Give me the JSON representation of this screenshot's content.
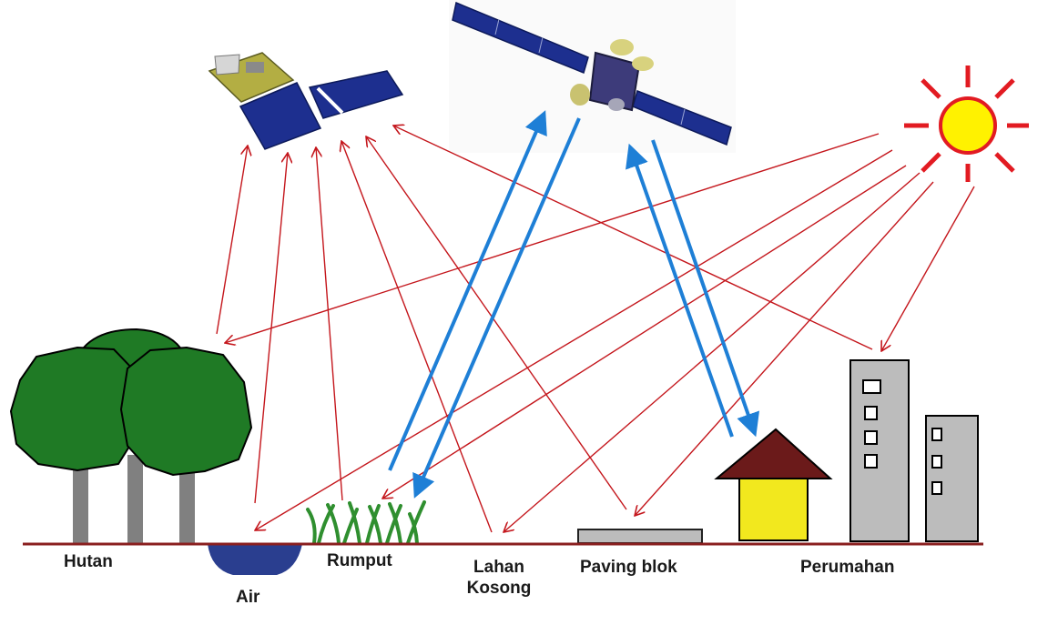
{
  "labels": {
    "hutan": "Hutan",
    "air": "Air",
    "rumput": "Rumput",
    "lahan_line1": "Lahan",
    "lahan_line2": "Kosong",
    "paving": "Paving blok",
    "perumahan": "Perumahan"
  },
  "colors": {
    "ground": "#8a1f1f",
    "passive_ray": "#c4161c",
    "active_ray": "#1e7fd6",
    "sun_fill": "#fff200",
    "sun_ray": "#e21b22",
    "tree_canopy": "#1f7a25",
    "trunk": "#808080",
    "water": "#2a3e8f",
    "grass": "#2f8f2f",
    "roof": "#6b1a1a",
    "house_wall": "#f2e81e",
    "building": "#bcbcbc",
    "solar_panel": "#1d2f8f"
  },
  "icons": {
    "satellite_passive": "satellite-icon",
    "satellite_active": "satellite-icon",
    "sun": "sun-icon"
  }
}
